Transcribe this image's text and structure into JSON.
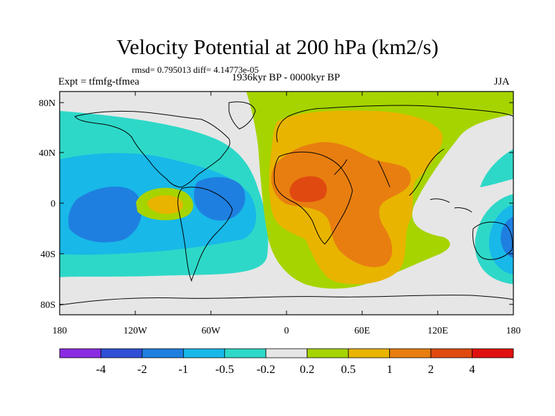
{
  "title": "Velocity Potential at 200 hPa (km2/s)",
  "stats": "rmsd= 0.795013 diff= 4.14773e-05",
  "experiment": "Expt = tfmfg-tfmea",
  "period": "1936kyr BP - 0000kyr BP",
  "season": "JJA",
  "map": {
    "y_axis_labels": [
      "80N",
      "40N",
      "0",
      "40S",
      "80S"
    ],
    "x_axis_labels": [
      "180",
      "120W",
      "60W",
      "0",
      "60E",
      "120E",
      "180"
    ]
  },
  "colorbar": {
    "colors": [
      "#8a2be2",
      "#2f4fd6",
      "#1f7fe0",
      "#18b8e8",
      "#2ed8c8",
      "#e6e6e6",
      "#a6d400",
      "#e8b400",
      "#e87e10",
      "#e04a10",
      "#e01010"
    ],
    "labels": [
      "-4",
      "-2",
      "-1",
      "-0.5",
      "-0.2",
      "0.2",
      "0.5",
      "1",
      "2",
      "4"
    ]
  }
}
